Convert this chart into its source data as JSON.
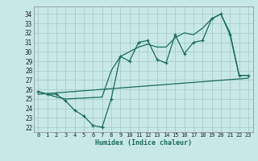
{
  "xlabel": "Humidex (Indice chaleur)",
  "bg_color": "#c8e8e8",
  "grid_color": "#a0c8c8",
  "line_color": "#1a6b5a",
  "xlim": [
    -0.5,
    23.5
  ],
  "ylim": [
    21.5,
    34.8
  ],
  "xticks": [
    0,
    1,
    2,
    3,
    4,
    5,
    6,
    7,
    8,
    9,
    10,
    11,
    12,
    13,
    14,
    15,
    16,
    17,
    18,
    19,
    20,
    21,
    22,
    23
  ],
  "yticks": [
    22,
    23,
    24,
    25,
    26,
    27,
    28,
    29,
    30,
    31,
    32,
    33,
    34
  ],
  "series1_x": [
    0,
    1,
    2,
    3,
    4,
    5,
    6,
    7,
    8,
    9,
    10,
    11,
    12,
    13,
    14,
    15,
    16,
    17,
    18,
    19,
    20,
    21,
    22,
    23
  ],
  "series1_y": [
    25.8,
    25.5,
    25.5,
    24.8,
    23.8,
    23.2,
    22.2,
    22.0,
    25.0,
    29.5,
    29.0,
    31.0,
    31.2,
    29.2,
    28.8,
    31.8,
    29.8,
    31.0,
    31.2,
    33.5,
    34.0,
    31.8,
    27.5,
    27.5
  ],
  "series2_x": [
    0,
    1,
    2,
    3,
    7,
    8,
    9,
    10,
    11,
    12,
    13,
    14,
    15,
    16,
    17,
    18,
    19,
    20,
    21,
    22,
    23
  ],
  "series2_y": [
    25.8,
    25.5,
    25.2,
    25.0,
    25.2,
    28.0,
    29.5,
    30.0,
    30.5,
    30.8,
    30.5,
    30.5,
    31.5,
    32.0,
    31.8,
    32.5,
    33.5,
    34.0,
    32.0,
    27.5,
    27.5
  ],
  "series3_x": [
    0,
    23
  ],
  "series3_y": [
    25.5,
    27.2
  ]
}
